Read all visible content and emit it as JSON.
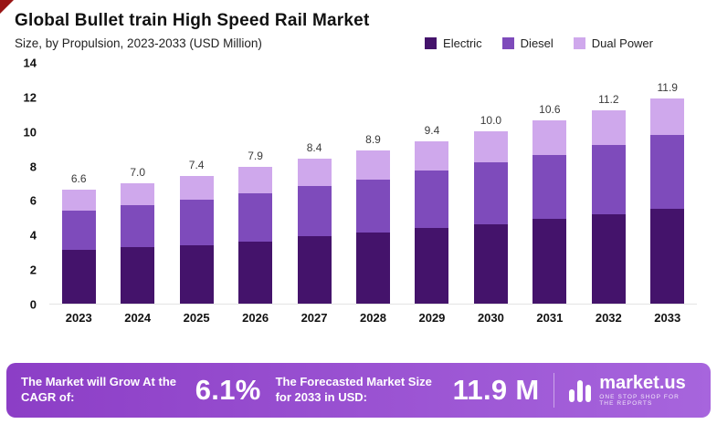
{
  "header": {
    "title": "Global Bullet train High Speed Rail Market",
    "subtitle": "Size, by Propulsion, 2023-2033 (USD Million)"
  },
  "colors": {
    "electric": "#44136b",
    "diesel": "#7e4bbb",
    "dual_power": "#cfa8ec",
    "banner_start": "#8c3ec6",
    "banner_end": "#a765dd",
    "corner_accent": "#991414"
  },
  "chart_data": {
    "type": "bar",
    "stacked": true,
    "title": "Global Bullet train High Speed Rail Market",
    "subtitle": "Size, by Propulsion, 2023-2033 (USD Million)",
    "categories": [
      "2023",
      "2024",
      "2025",
      "2026",
      "2027",
      "2028",
      "2029",
      "2030",
      "2031",
      "2032",
      "2033"
    ],
    "series": [
      {
        "name": "Electric",
        "color_key": "electric",
        "values": [
          3.1,
          3.3,
          3.4,
          3.6,
          3.9,
          4.1,
          4.4,
          4.6,
          4.9,
          5.2,
          5.5
        ]
      },
      {
        "name": "Diesel",
        "color_key": "diesel",
        "values": [
          2.3,
          2.4,
          2.6,
          2.8,
          2.9,
          3.1,
          3.3,
          3.6,
          3.7,
          4.0,
          4.3
        ]
      },
      {
        "name": "Dual Power",
        "color_key": "dual_power",
        "values": [
          1.2,
          1.3,
          1.4,
          1.5,
          1.6,
          1.7,
          1.7,
          1.8,
          2.0,
          2.0,
          2.1
        ]
      }
    ],
    "totals": [
      6.6,
      7.0,
      7.4,
      7.9,
      8.4,
      8.9,
      9.4,
      10.0,
      10.6,
      11.2,
      11.9
    ],
    "ylim": [
      0,
      14
    ],
    "yticks": [
      0,
      2,
      4,
      6,
      8,
      10,
      12,
      14
    ],
    "grid": false,
    "legend_position": "top-right"
  },
  "banner": {
    "cagr_label": "The Market will Grow At the CAGR of:",
    "cagr_value": "6.1%",
    "forecast_label": "The Forecasted Market Size for 2033 in USD:",
    "forecast_value": "11.9 M",
    "logo_text": "market.us",
    "logo_tagline": "ONE STOP SHOP FOR THE REPORTS"
  }
}
